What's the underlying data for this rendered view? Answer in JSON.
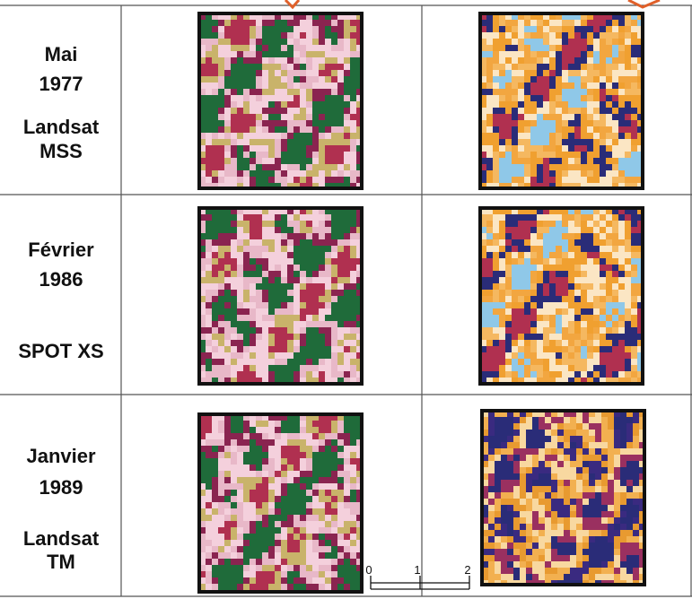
{
  "rows": [
    {
      "date": "Mai",
      "year": "1977",
      "sensor": [
        "Landsat",
        "MSS"
      ]
    },
    {
      "date": "Février",
      "year": "1986",
      "sensor": [
        "SPOT XS"
      ]
    },
    {
      "date": "Janvier",
      "year": "1989",
      "sensor": [
        "Landsat",
        "TM"
      ]
    }
  ],
  "scale_bar": [
    "0",
    "1",
    "2"
  ]
}
